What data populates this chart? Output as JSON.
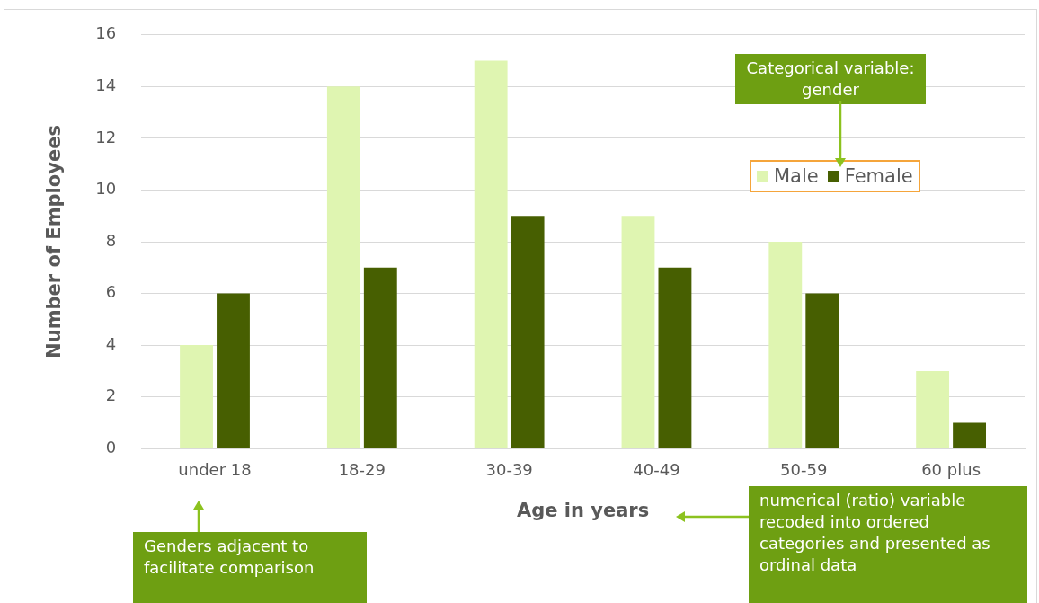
{
  "chart_data": {
    "type": "bar",
    "xlabel": "Age in years",
    "ylabel": "Number of Employees",
    "categories": [
      "under 18",
      "18-29",
      "30-39",
      "40-49",
      "50-59",
      "60 plus"
    ],
    "series": [
      {
        "name": "Male",
        "color": "#dff5b1",
        "values": [
          4,
          14,
          15,
          9,
          8,
          3
        ]
      },
      {
        "name": "Female",
        "color": "#475f01",
        "values": [
          6,
          7,
          9,
          7,
          6,
          1
        ]
      }
    ],
    "ylim": [
      0,
      16
    ],
    "yticks": [
      0,
      2,
      4,
      6,
      8,
      10,
      12,
      14,
      16
    ],
    "grid": "y",
    "legend": "top right",
    "annotations": [
      "Categorical variable: gender",
      "Genders adjacent to facilitate comparison",
      "numerical (ratio) variable recoded into ordered categories and presented as ordinal data"
    ]
  }
}
